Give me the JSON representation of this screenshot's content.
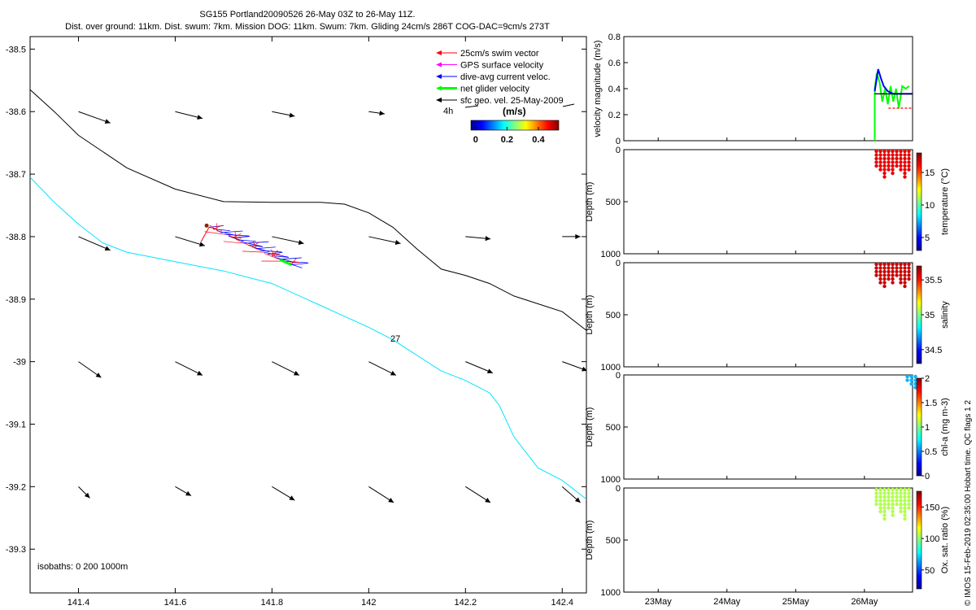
{
  "chart_data": [
    {
      "type": "map",
      "title_line1": "SG155 Portland20090526 26-May 03Z to 26-May 11Z.",
      "title_line2": "Dist. over ground: 11km. Dist. swum: 7km. Mission DOG: 11km. Swum: 7km. Gliding 24cm/s 286T COG-DAC=9cm/s 273T",
      "xlim": [
        141.3,
        142.45
      ],
      "ylim": [
        -39.37,
        -38.48
      ],
      "xticks": [
        "141.4",
        "141.6",
        "141.8",
        "142",
        "142.2",
        "142.4"
      ],
      "yticks": [
        "-38.5",
        "-38.6",
        "-38.7",
        "-38.8",
        "-38.9",
        "-39",
        "-39.1",
        "-39.2",
        "-39.3"
      ],
      "legend": {
        "position": "top-right",
        "items": [
          {
            "label": "25cm/s swim vector",
            "color": "#ff0000"
          },
          {
            "label": "GPS surface velocity",
            "color": "#ff00ff"
          },
          {
            "label": "dive-avg current veloc.",
            "color": "#0000ff"
          },
          {
            "label": "net glider velocity",
            "color": "#00ff00"
          },
          {
            "label": "sfc geo. vel. 25-May-2009",
            "color": "#000000"
          }
        ],
        "scale_label": "4h",
        "colorbar_title": "(m/s)",
        "colorbar_ticks": [
          "0",
          "0.2",
          "0.4"
        ]
      },
      "isobath_label": "isobaths: 0   200   1000m",
      "contour_label": "27",
      "isobath_black": [
        [
          141.3,
          -38.565
        ],
        [
          141.35,
          -38.6
        ],
        [
          141.4,
          -38.638
        ],
        [
          141.5,
          -38.69
        ],
        [
          141.6,
          -38.724
        ],
        [
          141.7,
          -38.744
        ],
        [
          141.8,
          -38.745
        ],
        [
          141.9,
          -38.745
        ],
        [
          141.95,
          -38.748
        ],
        [
          142.0,
          -38.762
        ],
        [
          142.05,
          -38.785
        ],
        [
          142.1,
          -38.82
        ],
        [
          142.15,
          -38.852
        ],
        [
          142.2,
          -38.862
        ],
        [
          142.25,
          -38.875
        ],
        [
          142.3,
          -38.895
        ],
        [
          142.4,
          -38.92
        ],
        [
          142.45,
          -38.95
        ]
      ],
      "isobath_cyan": [
        [
          141.3,
          -38.705
        ],
        [
          141.35,
          -38.745
        ],
        [
          141.4,
          -38.78
        ],
        [
          141.45,
          -38.81
        ],
        [
          141.5,
          -38.825
        ],
        [
          141.6,
          -38.84
        ],
        [
          141.7,
          -38.855
        ],
        [
          141.8,
          -38.875
        ],
        [
          141.9,
          -38.91
        ],
        [
          142.0,
          -38.945
        ],
        [
          142.05,
          -38.965
        ],
        [
          142.1,
          -38.99
        ],
        [
          142.15,
          -39.015
        ],
        [
          142.2,
          -39.03
        ],
        [
          142.25,
          -39.05
        ],
        [
          142.27,
          -39.07
        ],
        [
          142.3,
          -39.12
        ],
        [
          142.35,
          -39.17
        ],
        [
          142.4,
          -39.19
        ],
        [
          142.45,
          -39.22
        ]
      ],
      "geo_vectors": [
        {
          "lon": 141.4,
          "lat": -38.6,
          "u": 0.14,
          "v": -0.05
        },
        {
          "lon": 141.6,
          "lat": -38.6,
          "u": 0.12,
          "v": -0.03
        },
        {
          "lon": 141.8,
          "lat": -38.6,
          "u": 0.1,
          "v": -0.02
        },
        {
          "lon": 142.0,
          "lat": -38.6,
          "u": 0.07,
          "v": -0.01
        },
        {
          "lon": 141.4,
          "lat": -38.8,
          "u": 0.14,
          "v": -0.06
        },
        {
          "lon": 141.6,
          "lat": -38.8,
          "u": 0.13,
          "v": -0.04
        },
        {
          "lon": 141.8,
          "lat": -38.8,
          "u": 0.14,
          "v": -0.03
        },
        {
          "lon": 142.0,
          "lat": -38.8,
          "u": 0.14,
          "v": -0.03
        },
        {
          "lon": 142.2,
          "lat": -38.8,
          "u": 0.11,
          "v": -0.01
        },
        {
          "lon": 142.4,
          "lat": -38.8,
          "u": 0.08,
          "v": 0.0
        },
        {
          "lon": 141.4,
          "lat": -39.0,
          "u": 0.1,
          "v": -0.07
        },
        {
          "lon": 141.6,
          "lat": -39.0,
          "u": 0.12,
          "v": -0.06
        },
        {
          "lon": 141.8,
          "lat": -39.0,
          "u": 0.12,
          "v": -0.06
        },
        {
          "lon": 142.0,
          "lat": -39.0,
          "u": 0.12,
          "v": -0.06
        },
        {
          "lon": 142.2,
          "lat": -39.0,
          "u": 0.12,
          "v": -0.05
        },
        {
          "lon": 142.4,
          "lat": -39.0,
          "u": 0.11,
          "v": -0.04
        },
        {
          "lon": 141.4,
          "lat": -39.2,
          "u": 0.05,
          "v": -0.05
        },
        {
          "lon": 141.6,
          "lat": -39.2,
          "u": 0.07,
          "v": -0.04
        },
        {
          "lon": 141.8,
          "lat": -39.2,
          "u": 0.1,
          "v": -0.06
        },
        {
          "lon": 142.0,
          "lat": -39.2,
          "u": 0.11,
          "v": -0.07
        },
        {
          "lon": 142.2,
          "lat": -39.2,
          "u": 0.11,
          "v": -0.07
        },
        {
          "lon": 142.4,
          "lat": -39.2,
          "u": 0.08,
          "v": -0.07
        }
      ],
      "glider_track": {
        "start": [
          141.67,
          -38.785
        ],
        "end": [
          141.84,
          -38.845
        ]
      }
    },
    {
      "type": "line",
      "ylabel": "velocity magnitude (m/s)",
      "ylim": [
        0,
        0.8
      ],
      "yticks": [
        "0",
        "0.2",
        "0.4",
        "0.6",
        "0.8"
      ],
      "xlim": [
        22.5,
        26.7
      ],
      "series": [
        {
          "color": "#00ff00",
          "x": [
            26.15,
            26.15,
            26.18,
            26.22,
            26.26,
            26.3,
            26.34,
            26.38,
            26.42,
            26.46,
            26.5,
            26.55,
            26.6,
            26.65
          ],
          "y": [
            0.0,
            0.4,
            0.52,
            0.45,
            0.3,
            0.4,
            0.28,
            0.42,
            0.3,
            0.4,
            0.25,
            0.42,
            0.4,
            0.42
          ]
        },
        {
          "color": "#0000ff",
          "x": [
            26.15,
            26.2,
            26.24,
            26.28,
            26.34,
            26.42,
            26.5,
            26.6,
            26.7
          ],
          "y": [
            0.38,
            0.55,
            0.48,
            0.42,
            0.38,
            0.36,
            0.36,
            0.36,
            0.36
          ]
        },
        {
          "color": "#000000",
          "x": [
            26.15,
            26.7
          ],
          "y": [
            0.36,
            0.36
          ]
        },
        {
          "color": "#ff0000",
          "x": [
            26.35,
            26.7
          ],
          "y": [
            0.25,
            0.25
          ]
        }
      ]
    },
    {
      "type": "scatter",
      "ylabel": "Depth (m)",
      "colorbar_label": "temperature (°C)",
      "ylim": [
        1000,
        0
      ],
      "yticks": [
        "0",
        "500",
        "1000"
      ],
      "cbar_ticks": [
        "5",
        "10",
        "15"
      ],
      "cbar_range": [
        3,
        18
      ],
      "patch": {
        "x0": 26.15,
        "x1": 26.7,
        "depth": 280,
        "color_value": 16.5
      }
    },
    {
      "type": "scatter",
      "ylabel": "Depth (m)",
      "colorbar_label": "salinity",
      "ylim": [
        1000,
        0
      ],
      "yticks": [
        "0",
        "500",
        "1000"
      ],
      "cbar_ticks": [
        "34.5",
        "35",
        "35.5"
      ],
      "cbar_range": [
        34.3,
        35.7
      ],
      "patch": {
        "x0": 26.15,
        "x1": 26.7,
        "depth": 250,
        "color_value": 35.6
      }
    },
    {
      "type": "scatter",
      "ylabel": "Depth (m)",
      "colorbar_label": "chl-a (mg m-3)",
      "ylim": [
        1000,
        0
      ],
      "yticks": [
        "0",
        "500",
        "1000"
      ],
      "cbar_ticks": [
        "0",
        "0.5",
        "1",
        "1.5",
        "2"
      ],
      "cbar_range": [
        0,
        2
      ],
      "patch": {
        "x0": 26.6,
        "x1": 26.7,
        "depth": 140,
        "color_value": 0.6
      }
    },
    {
      "type": "scatter",
      "ylabel": "Depth (m)",
      "colorbar_label": "Ox. sat. ratio (%)",
      "ylim": [
        1000,
        0
      ],
      "yticks": [
        "0",
        "500",
        "1000"
      ],
      "cbar_ticks": [
        "50",
        "100",
        "150"
      ],
      "cbar_range": [
        20,
        175
      ],
      "patch": {
        "x0": 26.15,
        "x1": 26.7,
        "depth": 300,
        "color_value": 105
      },
      "xticks": [
        "23May",
        "24May",
        "25May",
        "26May"
      ]
    }
  ],
  "side_label": "© IMOS 15-Feb-2019 02:35:00 Hobart time. QC flags 1  2"
}
